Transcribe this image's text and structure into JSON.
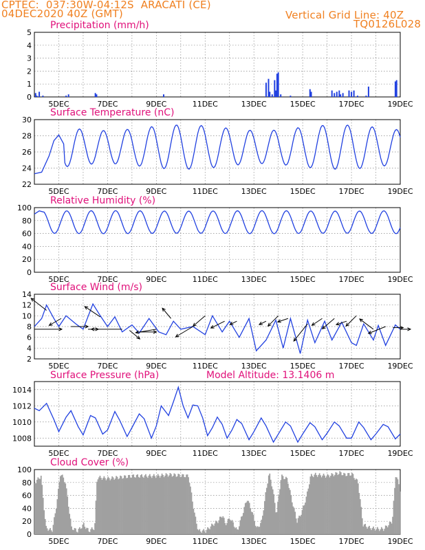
{
  "header": {
    "line1": "CPTEC:  037:30W-04:12S  ARACATI (CE)",
    "line2": "04DEC2020 40Z (GMT)",
    "grid_note": "Vertical Grid Line: 40Z",
    "code": "TQ0126L028"
  },
  "model_altitude": "Model Altitude: 13.1406 m",
  "colors": {
    "header": "#f08020",
    "title": "#e0107a",
    "series": "#2040e0",
    "cloud": "#a0a0a0"
  },
  "chart_data": [
    {
      "type": "bar",
      "title": "Precipitation (mm/h)",
      "ylim": [
        0,
        5
      ],
      "yticks": [
        0,
        1,
        2,
        3,
        4,
        5
      ],
      "x": [
        "5DEC",
        "7DEC",
        "9DEC",
        "11DEC",
        "13DEC",
        "15DEC",
        "17DEC",
        "19DEC"
      ],
      "bars": [
        {
          "day": 4.05,
          "value": 0.3
        },
        {
          "day": 4.1,
          "value": 0.1
        },
        {
          "day": 4.2,
          "value": 0.4
        },
        {
          "day": 4.35,
          "value": 0.1
        },
        {
          "day": 5.3,
          "value": 0.1
        },
        {
          "day": 5.4,
          "value": 0.2
        },
        {
          "day": 6.5,
          "value": 0.3
        },
        {
          "day": 6.55,
          "value": 0.2
        },
        {
          "day": 9.3,
          "value": 0.2
        },
        {
          "day": 13.5,
          "value": 1.1
        },
        {
          "day": 13.6,
          "value": 1.4
        },
        {
          "day": 13.65,
          "value": 0.4
        },
        {
          "day": 13.75,
          "value": 0.2
        },
        {
          "day": 13.85,
          "value": 1.3
        },
        {
          "day": 13.9,
          "value": 0.5
        },
        {
          "day": 13.95,
          "value": 1.8
        },
        {
          "day": 14.0,
          "value": 1.9
        },
        {
          "day": 14.1,
          "value": 0.2
        },
        {
          "day": 14.5,
          "value": 0.1
        },
        {
          "day": 15.3,
          "value": 0.6
        },
        {
          "day": 15.35,
          "value": 0.4
        },
        {
          "day": 16.2,
          "value": 0.5
        },
        {
          "day": 16.3,
          "value": 0.3
        },
        {
          "day": 16.4,
          "value": 0.4
        },
        {
          "day": 16.5,
          "value": 0.5
        },
        {
          "day": 16.55,
          "value": 0.2
        },
        {
          "day": 16.65,
          "value": 0.3
        },
        {
          "day": 16.9,
          "value": 0.5
        },
        {
          "day": 17.0,
          "value": 0.4
        },
        {
          "day": 17.1,
          "value": 0.5
        },
        {
          "day": 17.25,
          "value": 0.1
        },
        {
          "day": 17.6,
          "value": 0.1
        },
        {
          "day": 17.7,
          "value": 0.8
        },
        {
          "day": 18.8,
          "value": 1.2
        },
        {
          "day": 18.85,
          "value": 1.3
        }
      ]
    },
    {
      "type": "line",
      "title": "Surface Temperature (nC)",
      "ylim": [
        22,
        30
      ],
      "yticks": [
        22,
        24,
        26,
        28,
        30
      ],
      "x": [
        "5DEC",
        "7DEC",
        "9DEC",
        "11DEC",
        "13DEC",
        "15DEC",
        "17DEC",
        "19DEC"
      ],
      "daily": {
        "start_day": 4.0,
        "end_day": 19.0,
        "max": 29.0,
        "min": 24.2,
        "phase": 0.58
      },
      "points": [
        [
          4.0,
          23.3
        ],
        [
          4.3,
          23.5
        ],
        [
          4.6,
          25.5
        ],
        [
          4.8,
          27.4
        ],
        [
          5.0,
          28.1
        ],
        [
          5.2,
          27.0
        ]
      ]
    },
    {
      "type": "line",
      "title": "Relative Humidity (%)",
      "ylim": [
        0,
        100
      ],
      "yticks": [
        0,
        20,
        40,
        60,
        80,
        100
      ],
      "x": [
        "5DEC",
        "7DEC",
        "9DEC",
        "11DEC",
        "13DEC",
        "15DEC",
        "17DEC",
        "19DEC"
      ],
      "daily": {
        "start_day": 4.0,
        "end_day": 19.0,
        "max": 95,
        "min": 60,
        "phase": 0.08
      },
      "points": [
        [
          4.0,
          90
        ],
        [
          4.2,
          95
        ],
        [
          4.4,
          93
        ]
      ]
    },
    {
      "type": "line",
      "title": "Surface Wind (m/s)",
      "ylim": [
        2,
        14
      ],
      "yticks": [
        2,
        4,
        6,
        8,
        10,
        12,
        14
      ],
      "x": [
        "5DEC",
        "7DEC",
        "9DEC",
        "11DEC",
        "13DEC",
        "15DEC",
        "17DEC",
        "19DEC"
      ],
      "speed": [
        [
          4.0,
          8.0
        ],
        [
          4.3,
          9.5
        ],
        [
          4.5,
          12.0
        ],
        [
          4.8,
          9.5
        ],
        [
          5.0,
          8.0
        ],
        [
          5.3,
          10.0
        ],
        [
          5.7,
          8.5
        ],
        [
          6.0,
          7.5
        ],
        [
          6.4,
          12.2
        ],
        [
          6.7,
          10.0
        ],
        [
          7.0,
          8.0
        ],
        [
          7.3,
          9.8
        ],
        [
          7.6,
          7.0
        ],
        [
          8.0,
          8.3
        ],
        [
          8.3,
          6.8
        ],
        [
          8.7,
          9.5
        ],
        [
          9.1,
          7.0
        ],
        [
          9.4,
          6.5
        ],
        [
          9.7,
          9.0
        ],
        [
          10.0,
          7.5
        ],
        [
          10.5,
          8.0
        ],
        [
          11.0,
          6.5
        ],
        [
          11.3,
          10.0
        ],
        [
          11.7,
          7.0
        ],
        [
          12.0,
          9.0
        ],
        [
          12.4,
          6.0
        ],
        [
          12.8,
          9.5
        ],
        [
          13.1,
          3.5
        ],
        [
          13.5,
          5.5
        ],
        [
          13.9,
          9.2
        ],
        [
          14.2,
          4.0
        ],
        [
          14.5,
          9.5
        ],
        [
          14.9,
          3.0
        ],
        [
          15.2,
          9.2
        ],
        [
          15.5,
          5.0
        ],
        [
          15.9,
          9.0
        ],
        [
          16.2,
          5.5
        ],
        [
          16.6,
          8.8
        ],
        [
          17.0,
          5.0
        ],
        [
          17.2,
          4.5
        ],
        [
          17.5,
          8.5
        ],
        [
          17.9,
          5.5
        ],
        [
          18.1,
          8.2
        ],
        [
          18.4,
          4.5
        ],
        [
          18.8,
          8.3
        ],
        [
          19.0,
          7.5
        ]
      ],
      "arrows": [
        [
          4.0,
          7.5,
          0.8,
          0.0
        ],
        [
          4.5,
          11.0,
          -0.45,
          -0.35
        ],
        [
          5.1,
          9.5,
          -0.35,
          0.2
        ],
        [
          5.5,
          8.0,
          0.5,
          0.0
        ],
        [
          6.2,
          7.5,
          0.3,
          0.0
        ],
        [
          6.7,
          9.8,
          -0.45,
          -0.3
        ],
        [
          7.6,
          7.5,
          -0.9,
          0.0
        ],
        [
          7.9,
          7.3,
          0.3,
          0.25
        ],
        [
          8.3,
          7.0,
          0.5,
          0.0
        ],
        [
          9.0,
          7.5,
          -0.6,
          0.1
        ],
        [
          9.6,
          9.5,
          -0.25,
          -0.3
        ],
        [
          10.5,
          8.0,
          -0.5,
          0.3
        ],
        [
          11.0,
          10.0,
          -0.35,
          0.3
        ],
        [
          11.8,
          9.0,
          -0.4,
          0.2
        ],
        [
          12.3,
          9.0,
          -0.2,
          0.1
        ],
        [
          13.5,
          9.0,
          -0.2,
          0.1
        ],
        [
          14.0,
          10.0,
          -0.3,
          0.3
        ],
        [
          14.4,
          9.5,
          -0.3,
          0.1
        ],
        [
          15.2,
          8.5,
          -0.4,
          0.5
        ],
        [
          15.8,
          9.5,
          -0.3,
          0.2
        ],
        [
          16.3,
          9.5,
          -0.35,
          0.3
        ],
        [
          16.8,
          9.0,
          -0.3,
          0.1
        ],
        [
          17.2,
          10.0,
          -0.3,
          0.3
        ],
        [
          17.9,
          7.5,
          -0.4,
          -0.3
        ],
        [
          18.4,
          8.0,
          -0.5,
          0.2
        ],
        [
          18.7,
          7.8,
          0.3,
          0.0
        ],
        [
          19.0,
          7.5,
          0.3,
          0.0
        ]
      ]
    },
    {
      "type": "line",
      "title": "Surface Pressure (hPa)",
      "ylim": [
        1007,
        1015
      ],
      "yticks": [
        1008,
        1010,
        1012,
        1014
      ],
      "x": [
        "5DEC",
        "7DEC",
        "9DEC",
        "11DEC",
        "13DEC",
        "15DEC",
        "17DEC",
        "19DEC"
      ],
      "points": [
        [
          4.0,
          1011.7
        ],
        [
          4.2,
          1011.4
        ],
        [
          4.5,
          1012.3
        ],
        [
          4.8,
          1010.3
        ],
        [
          5.0,
          1008.8
        ],
        [
          5.3,
          1010.6
        ],
        [
          5.5,
          1011.4
        ],
        [
          5.8,
          1009.4
        ],
        [
          6.0,
          1008.4
        ],
        [
          6.3,
          1010.8
        ],
        [
          6.5,
          1010.5
        ],
        [
          6.8,
          1008.5
        ],
        [
          7.0,
          1009.0
        ],
        [
          7.3,
          1011.3
        ],
        [
          7.5,
          1010.2
        ],
        [
          7.8,
          1008.2
        ],
        [
          8.0,
          1009.3
        ],
        [
          8.3,
          1011.0
        ],
        [
          8.5,
          1010.4
        ],
        [
          8.8,
          1008.0
        ],
        [
          9.0,
          1009.5
        ],
        [
          9.2,
          1012.0
        ],
        [
          9.5,
          1010.8
        ],
        [
          9.7,
          1012.5
        ],
        [
          9.9,
          1014.3
        ],
        [
          10.1,
          1012.0
        ],
        [
          10.3,
          1010.5
        ],
        [
          10.5,
          1012.1
        ],
        [
          10.7,
          1012.0
        ],
        [
          10.9,
          1010.5
        ],
        [
          11.1,
          1008.3
        ],
        [
          11.3,
          1009.3
        ],
        [
          11.5,
          1010.6
        ],
        [
          11.7,
          1009.7
        ],
        [
          11.9,
          1008.0
        ],
        [
          12.1,
          1009.0
        ],
        [
          12.3,
          1010.3
        ],
        [
          12.5,
          1009.8
        ],
        [
          12.8,
          1007.8
        ],
        [
          13.0,
          1008.8
        ],
        [
          13.3,
          1010.5
        ],
        [
          13.5,
          1009.5
        ],
        [
          13.8,
          1007.5
        ],
        [
          14.0,
          1008.5
        ],
        [
          14.3,
          1010.0
        ],
        [
          14.5,
          1009.5
        ],
        [
          14.8,
          1007.5
        ],
        [
          15.0,
          1008.5
        ],
        [
          15.3,
          1009.9
        ],
        [
          15.5,
          1009.4
        ],
        [
          15.8,
          1007.8
        ],
        [
          16.0,
          1008.6
        ],
        [
          16.3,
          1010.0
        ],
        [
          16.5,
          1009.5
        ],
        [
          16.8,
          1008.0
        ],
        [
          17.0,
          1008.0
        ],
        [
          17.3,
          1010.0
        ],
        [
          17.5,
          1009.3
        ],
        [
          17.8,
          1007.8
        ],
        [
          18.0,
          1008.5
        ],
        [
          18.3,
          1009.7
        ],
        [
          18.5,
          1009.4
        ],
        [
          18.8,
          1007.9
        ],
        [
          19.0,
          1008.5
        ]
      ]
    },
    {
      "type": "bar",
      "title": "Cloud Cover (%)",
      "ylim": [
        0,
        100
      ],
      "yticks": [
        0,
        20,
        40,
        60,
        80,
        100
      ],
      "x": [
        "5DEC",
        "7DEC",
        "9DEC",
        "11DEC",
        "13DEC",
        "15DEC",
        "17DEC",
        "19DEC"
      ],
      "profile": [
        [
          4.0,
          80
        ],
        [
          4.25,
          90
        ],
        [
          4.45,
          10
        ],
        [
          4.7,
          5
        ],
        [
          4.85,
          35
        ],
        [
          5.05,
          95
        ],
        [
          5.25,
          80
        ],
        [
          5.5,
          10
        ],
        [
          5.75,
          5
        ],
        [
          6.0,
          15
        ],
        [
          6.2,
          5
        ],
        [
          6.45,
          10
        ],
        [
          6.55,
          88
        ],
        [
          7.0,
          86
        ],
        [
          8.0,
          90
        ],
        [
          9.0,
          90
        ],
        [
          9.5,
          92
        ],
        [
          10.3,
          90
        ],
        [
          10.55,
          30
        ],
        [
          10.7,
          5
        ],
        [
          11.0,
          5
        ],
        [
          11.3,
          15
        ],
        [
          11.5,
          20
        ],
        [
          11.7,
          30
        ],
        [
          11.8,
          15
        ],
        [
          12.0,
          25
        ],
        [
          12.3,
          5
        ],
        [
          12.7,
          55
        ],
        [
          12.9,
          35
        ],
        [
          13.1,
          8
        ],
        [
          13.3,
          20
        ],
        [
          13.45,
          60
        ],
        [
          13.6,
          95
        ],
        [
          13.75,
          70
        ],
        [
          13.9,
          30
        ],
        [
          14.1,
          90
        ],
        [
          14.35,
          85
        ],
        [
          14.55,
          50
        ],
        [
          14.75,
          20
        ],
        [
          14.95,
          35
        ],
        [
          15.15,
          60
        ],
        [
          15.3,
          90
        ],
        [
          15.5,
          92
        ],
        [
          16.0,
          90
        ],
        [
          16.5,
          95
        ],
        [
          16.7,
          92
        ],
        [
          17.0,
          93
        ],
        [
          17.25,
          80
        ],
        [
          17.45,
          15
        ],
        [
          17.7,
          10
        ],
        [
          18.0,
          8
        ],
        [
          18.3,
          8
        ],
        [
          18.65,
          20
        ],
        [
          18.8,
          95
        ],
        [
          18.95,
          70
        ],
        [
          19.0,
          60
        ]
      ]
    }
  ],
  "panel_titles": [
    "Precipitation (mm/h)",
    "Surface Temperature (nC)",
    "Relative Humidity (%)",
    "Surface Wind (m/s)",
    "Surface Pressure (hPa)",
    "Cloud Cover (%)"
  ]
}
